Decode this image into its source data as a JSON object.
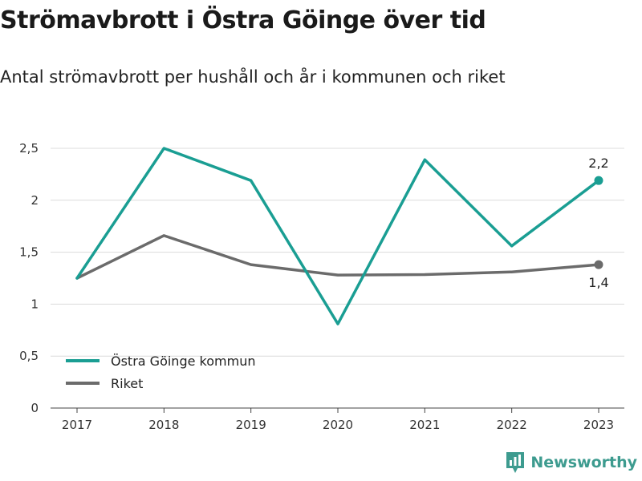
{
  "title": "Strömavbrott i Östra Göinge över tid",
  "subtitle": "Antal strömavbrott per hushåll och år i kommunen och riket",
  "brand": "Newsworthy",
  "chart_data": {
    "type": "line",
    "x": [
      "2017",
      "2018",
      "2019",
      "2020",
      "2021",
      "2022",
      "2023"
    ],
    "ylim": [
      0,
      2.5
    ],
    "yticks": [
      {
        "value": 0,
        "label": "0"
      },
      {
        "value": 0.5,
        "label": "0,5"
      },
      {
        "value": 1,
        "label": "1"
      },
      {
        "value": 1.5,
        "label": "1,5"
      },
      {
        "value": 2,
        "label": "2"
      },
      {
        "value": 2.5,
        "label": "2,5"
      }
    ],
    "grid": true,
    "legend_position": "bottom-left",
    "series": [
      {
        "name": "Östra Göinge kommun",
        "color": "#1a9e93",
        "values": [
          1.25,
          2.5,
          2.19,
          0.81,
          2.39,
          1.56,
          2.19
        ],
        "end_label": "2,2",
        "end_label_position": "above"
      },
      {
        "name": "Riket",
        "color": "#6b6b6b",
        "values": [
          1.25,
          1.66,
          1.38,
          1.28,
          1.285,
          1.31,
          1.38
        ],
        "end_label": "1,4",
        "end_label_position": "below"
      }
    ]
  }
}
